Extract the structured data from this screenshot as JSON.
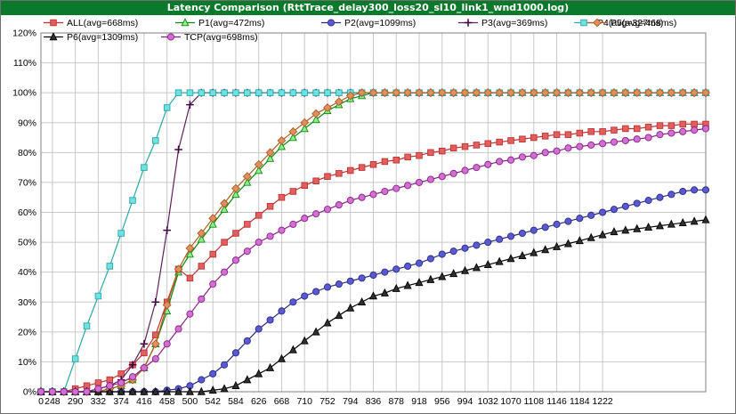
{
  "window": {
    "title": "Latency Comparison (RttTrace_delay300_loss20_sl10_link1_wnd1000.log)"
  },
  "chart_data": {
    "type": "line",
    "title": "Latency Comparison (RttTrace_delay300_loss20_sl10_link1_wnd1000.log)",
    "xlabel": "",
    "ylabel": "",
    "x_unit": "ms",
    "x_step": 21,
    "x_start": 0,
    "x_points": 59,
    "x_tick_labels": [
      "0",
      "248",
      "290",
      "332",
      "374",
      "416",
      "458",
      "500",
      "542",
      "584",
      "626",
      "668",
      "710",
      "752",
      "794",
      "836",
      "878",
      "918",
      "956",
      "994",
      "1032",
      "1070",
      "1108",
      "1146",
      "1184",
      "1222"
    ],
    "y_tick_labels": [
      "0%",
      "10%",
      "20%",
      "30%",
      "40%",
      "50%",
      "60%",
      "70%",
      "80%",
      "90%",
      "100%",
      "110%",
      "120%"
    ],
    "ylim": [
      0,
      120
    ],
    "grid": true,
    "legend_position": "top",
    "series": [
      {
        "name": "ALL(avg=668ms)",
        "color": "#c03030",
        "fill": "#e06060",
        "marker": "square",
        "values": [
          0,
          0,
          0,
          1,
          2,
          3,
          4,
          6,
          9,
          13,
          19,
          30,
          41,
          38,
          42,
          46,
          50,
          53,
          56,
          59,
          62,
          65,
          67,
          69,
          70.5,
          72,
          73,
          74,
          75,
          76,
          77,
          77.5,
          78.5,
          79,
          80,
          80.5,
          81.5,
          82,
          82.5,
          83,
          83.5,
          84,
          84.5,
          85,
          85.5,
          86,
          86,
          86.5,
          87,
          87,
          87.5,
          88,
          88,
          88.5,
          89,
          89,
          89.5,
          89.5,
          89.5
        ]
      },
      {
        "name": "P1(avg=472ms)",
        "color": "#0a8a0a",
        "fill": "#90ee90",
        "marker": "triangle",
        "values": [
          0,
          0,
          0,
          0,
          0,
          0,
          1,
          2,
          4,
          8,
          16,
          27,
          40,
          46,
          51,
          56,
          61,
          66,
          70,
          74,
          78,
          82,
          85,
          88,
          91,
          94,
          96,
          98,
          99,
          100,
          100,
          100,
          100,
          100,
          100,
          100,
          100,
          100,
          100,
          100,
          100,
          100,
          100,
          100,
          100,
          100,
          100,
          100,
          100,
          100,
          100,
          100,
          100,
          100,
          100,
          100,
          100,
          100,
          100
        ]
      },
      {
        "name": "P2(avg=1099ms)",
        "color": "#2a2a8a",
        "fill": "#5a5ad0",
        "marker": "circle",
        "values": [
          0,
          0,
          0,
          0,
          0,
          0,
          0,
          0,
          0,
          0,
          0,
          0.5,
          1,
          2,
          4,
          6,
          9,
          13,
          17,
          21,
          24,
          27,
          30,
          32,
          33.5,
          35,
          36,
          37,
          38,
          39,
          40,
          41,
          42,
          43,
          44.5,
          46,
          47,
          48,
          49,
          50,
          51,
          52,
          53,
          54,
          55,
          56,
          57,
          58,
          59,
          60,
          61,
          62,
          63,
          64,
          65,
          66,
          67,
          67.5,
          67.5
        ]
      },
      {
        "name": "P3(avg=369ms)",
        "color": "#602060",
        "fill": "#c060c0",
        "marker": "cross",
        "values": [
          0,
          0,
          0,
          0,
          0,
          1,
          2,
          4,
          9,
          16,
          30,
          54,
          81,
          96,
          100,
          100,
          100,
          100,
          100,
          100,
          100,
          100,
          100,
          100,
          100,
          100,
          100,
          100,
          100,
          100,
          100,
          100,
          100,
          100,
          100,
          100,
          100,
          100,
          100,
          100,
          100,
          100,
          100,
          100,
          100,
          100,
          100,
          100,
          100,
          100,
          100,
          100,
          100,
          100,
          100,
          100,
          100,
          100,
          100
        ]
      },
      {
        "name": "P4(avg=327ms)",
        "color": "#2aa8a8",
        "fill": "#70e0e0",
        "marker": "square",
        "values": [
          0,
          0,
          0,
          11,
          22,
          32,
          42,
          53,
          64,
          75,
          84,
          95,
          100,
          100,
          100,
          100,
          100,
          100,
          100,
          100,
          100,
          100,
          100,
          100,
          100,
          100,
          100,
          100,
          100,
          100,
          100,
          100,
          100,
          100,
          100,
          100,
          100,
          100,
          100,
          100,
          100,
          100,
          100,
          100,
          100,
          100,
          100,
          100,
          100,
          100,
          100,
          100,
          100,
          100,
          100,
          100,
          100,
          100,
          100
        ]
      },
      {
        "name": "P5(avg=468ms)",
        "color": "#b05a20",
        "fill": "#e09060",
        "marker": "diamond",
        "values": [
          0,
          0,
          0,
          0,
          0,
          0,
          1,
          2,
          4,
          8,
          16,
          29,
          41,
          48,
          53,
          58,
          63,
          68,
          72,
          76,
          80,
          84,
          87,
          90,
          93,
          95,
          97,
          99,
          100,
          100,
          100,
          100,
          100,
          100,
          100,
          100,
          100,
          100,
          100,
          100,
          100,
          100,
          100,
          100,
          100,
          100,
          100,
          100,
          100,
          100,
          100,
          100,
          100,
          100,
          100,
          100,
          100,
          100,
          100
        ]
      },
      {
        "name": "P6(avg=1309ms)",
        "color": "#000000",
        "fill": "#303030",
        "marker": "triangle",
        "values": [
          0,
          0,
          0,
          0,
          0,
          0,
          0,
          0,
          0,
          0,
          0,
          0,
          0,
          0,
          0,
          0.5,
          1,
          2,
          4,
          6,
          8,
          11,
          14,
          17,
          20,
          23,
          25.5,
          28,
          30,
          32,
          33,
          34.5,
          35.5,
          36.5,
          37.5,
          38.5,
          39.5,
          40.5,
          41.5,
          42.5,
          43.5,
          44.5,
          45.5,
          46.5,
          47.5,
          48.5,
          49.5,
          50.5,
          51.5,
          52.5,
          53.5,
          54,
          54.5,
          55,
          55.5,
          56,
          56.5,
          57,
          57.5
        ]
      },
      {
        "name": "TCP(avg=698ms)",
        "color": "#8a208a",
        "fill": "#d070d0",
        "marker": "circle",
        "values": [
          0,
          0,
          0,
          0,
          0,
          1,
          2,
          3,
          5,
          8,
          11,
          16,
          21,
          26,
          31,
          36,
          40,
          44,
          47,
          50,
          52,
          54,
          56,
          58,
          59.5,
          61,
          62.5,
          64,
          65,
          66,
          67,
          68,
          69,
          70,
          71,
          72,
          73,
          74,
          75,
          76,
          77,
          77.5,
          78.5,
          79,
          80,
          80.5,
          81.5,
          82,
          82.5,
          83,
          83.5,
          84,
          84.5,
          85,
          86,
          86.5,
          87,
          87.5,
          88
        ]
      }
    ]
  }
}
